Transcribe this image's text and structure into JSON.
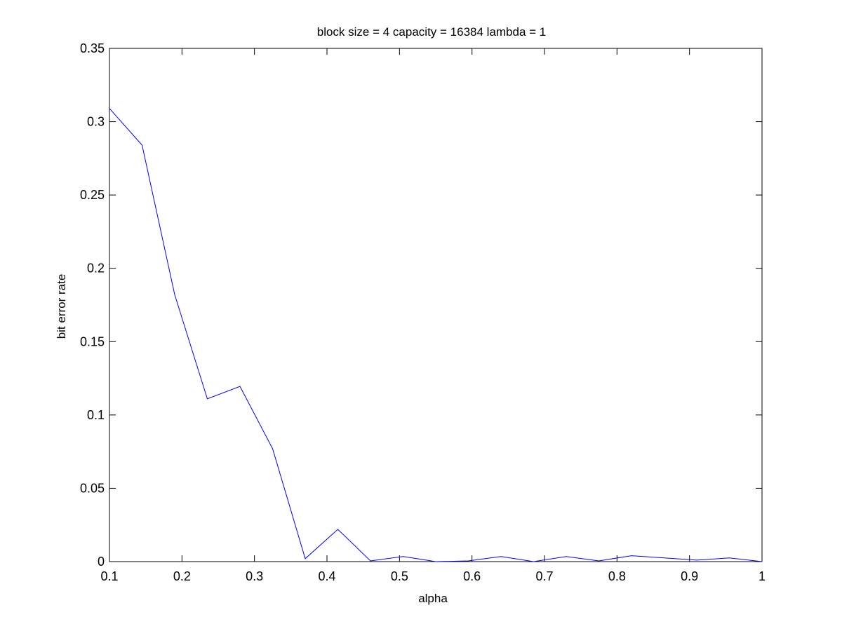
{
  "chart_data": {
    "type": "line",
    "title": "block size = 4  capacity = 16384  lambda = 1",
    "xlabel": "alpha",
    "ylabel": "bit error rate",
    "xlim": [
      0.1,
      1
    ],
    "ylim": [
      0,
      0.35
    ],
    "grid": false,
    "box": true,
    "x_ticks": [
      0.1,
      0.2,
      0.3,
      0.4,
      0.5,
      0.6,
      0.7,
      0.8,
      0.9,
      1
    ],
    "x_tick_labels": [
      "0.1",
      "0.2",
      "0.3",
      "0.4",
      "0.5",
      "0.6",
      "0.7",
      "0.8",
      "0.9",
      "1"
    ],
    "y_ticks": [
      0,
      0.05,
      0.1,
      0.15,
      0.2,
      0.25,
      0.3,
      0.35
    ],
    "y_tick_labels": [
      "0",
      "0.05",
      "0.1",
      "0.15",
      "0.2",
      "0.25",
      "0.3",
      "0.35"
    ],
    "series": [
      {
        "color": "#0000ff",
        "x": [
          0.1,
          0.145,
          0.19,
          0.235,
          0.28,
          0.325,
          0.37,
          0.415,
          0.46,
          0.505,
          0.55,
          0.595,
          0.64,
          0.685,
          0.73,
          0.775,
          0.82,
          0.865,
          0.91,
          0.955,
          1.0
        ],
        "y": [
          0.309,
          0.284,
          0.182,
          0.111,
          0.1195,
          0.077,
          0.002,
          0.022,
          0.0005,
          0.0035,
          0.0,
          0.0005,
          0.0035,
          0.0,
          0.0035,
          0.0005,
          0.004,
          0.0025,
          0.001,
          0.0025,
          0.0
        ]
      }
    ]
  }
}
